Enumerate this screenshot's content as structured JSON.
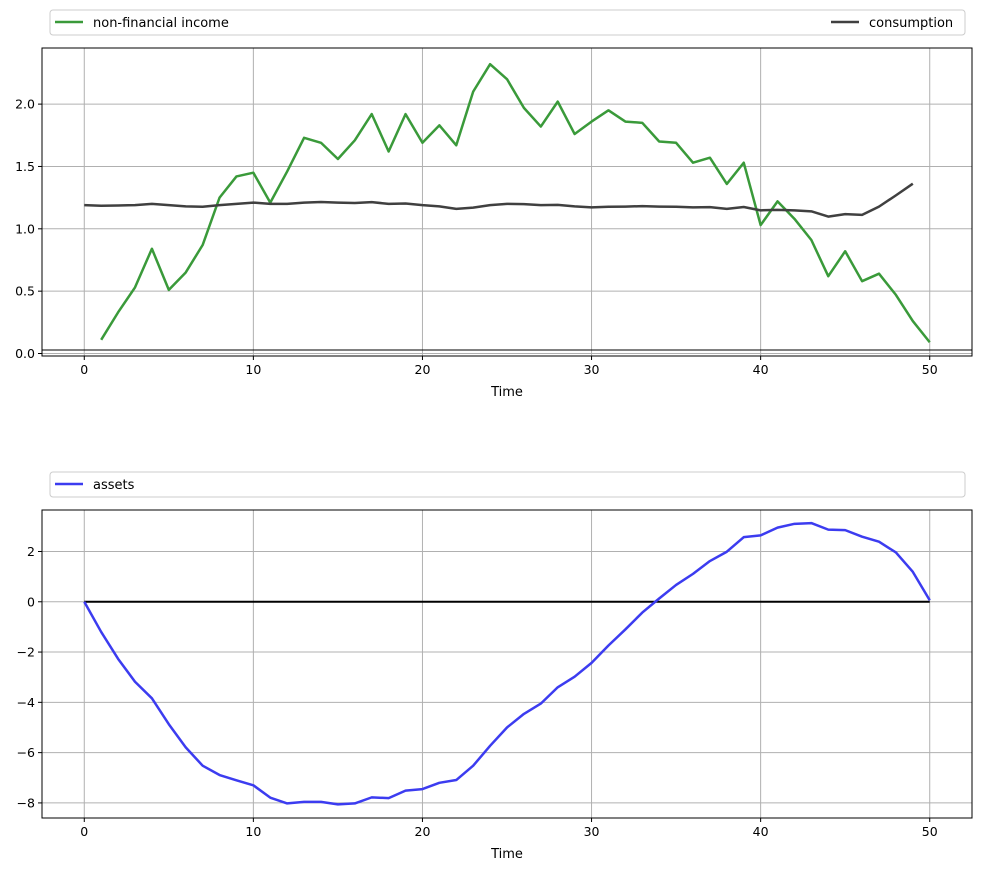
{
  "chart_data": [
    {
      "type": "line",
      "xlabel": "Time",
      "ylabel": "",
      "xlim": [
        -2.5,
        52.5
      ],
      "ylim": [
        -0.02,
        2.45
      ],
      "xticks": [
        0,
        10,
        20,
        30,
        40,
        50
      ],
      "yticks": [
        0.0,
        0.5,
        1.0,
        1.5,
        2.0
      ],
      "grid": true,
      "legend": {
        "placement": "above the plot, spread across full width"
      },
      "series": [
        {
          "name": "non-financial income",
          "color": "#3a9a3a",
          "x": [
            1,
            2,
            3,
            4,
            5,
            6,
            7,
            8,
            9,
            10,
            11,
            12,
            13,
            14,
            15,
            16,
            17,
            18,
            19,
            20,
            21,
            22,
            23,
            24,
            25,
            26,
            27,
            28,
            29,
            30,
            31,
            32,
            33,
            34,
            35,
            36,
            37,
            38,
            39,
            40,
            41,
            42,
            43,
            44,
            45,
            46,
            47,
            48,
            49,
            50
          ],
          "y": [
            0.11,
            0.33,
            0.53,
            0.84,
            0.51,
            0.65,
            0.87,
            1.25,
            1.42,
            1.45,
            1.21,
            1.46,
            1.73,
            1.69,
            1.56,
            1.71,
            1.92,
            1.62,
            1.92,
            1.69,
            1.83,
            1.67,
            2.1,
            2.32,
            2.2,
            1.97,
            1.82,
            2.02,
            1.76,
            1.86,
            1.95,
            1.86,
            1.85,
            1.7,
            1.69,
            1.53,
            1.57,
            1.36,
            1.53,
            1.03,
            1.22,
            1.08,
            0.91,
            0.62,
            0.82,
            0.58,
            0.64,
            0.47,
            0.26,
            0.09
          ]
        },
        {
          "name": "consumption",
          "color": "#404040",
          "x": [
            0,
            1,
            2,
            3,
            4,
            5,
            6,
            7,
            8,
            9,
            10,
            11,
            12,
            13,
            14,
            15,
            16,
            17,
            18,
            19,
            20,
            21,
            22,
            23,
            24,
            25,
            26,
            27,
            28,
            29,
            30,
            31,
            32,
            33,
            34,
            35,
            36,
            37,
            38,
            39,
            40,
            41,
            42,
            43,
            44,
            45,
            46,
            47,
            48,
            49
          ],
          "y": [
            1.19,
            1.185,
            1.187,
            1.19,
            1.2,
            1.19,
            1.18,
            1.177,
            1.19,
            1.2,
            1.21,
            1.2,
            1.2,
            1.21,
            1.215,
            1.21,
            1.207,
            1.214,
            1.2,
            1.203,
            1.19,
            1.18,
            1.16,
            1.17,
            1.19,
            1.2,
            1.198,
            1.19,
            1.192,
            1.18,
            1.172,
            1.177,
            1.178,
            1.182,
            1.178,
            1.177,
            1.172,
            1.174,
            1.16,
            1.175,
            1.148,
            1.152,
            1.148,
            1.14,
            1.098,
            1.118,
            1.112,
            1.178,
            1.268,
            1.362
          ]
        }
      ]
    },
    {
      "type": "line",
      "xlabel": "Time",
      "ylabel": "",
      "xlim": [
        -2.5,
        52.5
      ],
      "ylim": [
        -8.6,
        3.65
      ],
      "xticks": [
        0,
        10,
        20,
        30,
        40,
        50
      ],
      "yticks": [
        -8,
        -6,
        -4,
        -2,
        0,
        2
      ],
      "ytick_labels": [
        "−8",
        "−6",
        "−4",
        "−2",
        "0",
        "2"
      ],
      "grid": true,
      "zero_line": true,
      "legend": {
        "placement": "above the plot, left"
      },
      "series": [
        {
          "name": "assets",
          "color": "#3c3cf0",
          "x": [
            0,
            1,
            2,
            3,
            4,
            5,
            6,
            7,
            8,
            9,
            10,
            11,
            12,
            13,
            14,
            15,
            16,
            17,
            18,
            19,
            20,
            21,
            22,
            23,
            24,
            25,
            26,
            27,
            28,
            29,
            30,
            31,
            32,
            33,
            34,
            35,
            36,
            37,
            38,
            39,
            40,
            41,
            42,
            43,
            44,
            45,
            46,
            47,
            48,
            49,
            50
          ],
          "y": [
            0.0,
            -1.2,
            -2.27,
            -3.18,
            -3.84,
            -4.87,
            -5.79,
            -6.52,
            -6.89,
            -7.1,
            -7.3,
            -7.79,
            -8.02,
            -7.96,
            -7.96,
            -8.06,
            -8.02,
            -7.78,
            -7.81,
            -7.51,
            -7.45,
            -7.2,
            -7.09,
            -6.52,
            -5.73,
            -5.0,
            -4.46,
            -4.05,
            -3.4,
            -2.98,
            -2.43,
            -1.74,
            -1.1,
            -0.43,
            0.13,
            0.67,
            1.11,
            1.62,
            1.99,
            2.57,
            2.64,
            2.95,
            3.1,
            3.13,
            2.87,
            2.85,
            2.59,
            2.39,
            1.96,
            1.19,
            0.06
          ]
        }
      ]
    }
  ]
}
